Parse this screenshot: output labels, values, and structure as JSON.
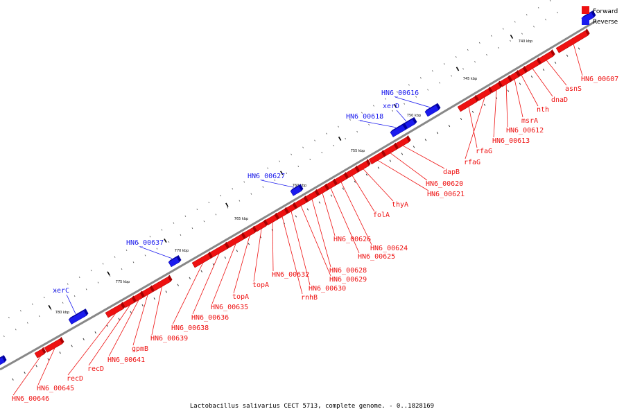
{
  "caption": "Lactobacillus salivarius CECT 5713, complete genome. - 0..1828169",
  "legend": [
    {
      "label": "Forward",
      "color": "#ee1111"
    },
    {
      "label": "Reverse",
      "color": "#1a1aee"
    }
  ],
  "colors": {
    "forward": "#ee1111",
    "reverse": "#1a1aee",
    "backbone": "#888888"
  },
  "ticks": [
    {
      "label": "740 kbp"
    },
    {
      "label": "745 kbp"
    },
    {
      "label": "750 kbp"
    },
    {
      "label": "755 kbp"
    },
    {
      "label": "760 kbp"
    },
    {
      "label": "765 kbp"
    },
    {
      "label": "770 kbp"
    },
    {
      "label": "775 kbp"
    },
    {
      "label": "780 kbp"
    }
  ],
  "forward_genes": [
    "HN6_00607",
    "asnS",
    "dnaD",
    "nth",
    "msrA",
    "HN6_00612",
    "HN6_00613",
    "rfaG",
    "rfaG",
    "dapB",
    "HN6_00620",
    "HN6_00621",
    "thyA",
    "folA",
    "HN6_00624",
    "HN6_00625",
    "HN6_00626",
    "HN6_00628",
    "HN6_00629",
    "HN6_00630",
    "rnhB",
    "HN6_00632",
    "topA",
    "topA",
    "HN6_00635",
    "HN6_00636",
    "HN6_00638",
    "HN6_00639",
    "gpmB",
    "HN6_00641",
    "recD",
    "recD",
    "HN6_00645",
    "HN6_00646"
  ],
  "reverse_genes": [
    "HN6_00616",
    "xerD",
    "HN6_00618",
    "HN6_00627",
    "HN6_00637",
    "xerC"
  ]
}
